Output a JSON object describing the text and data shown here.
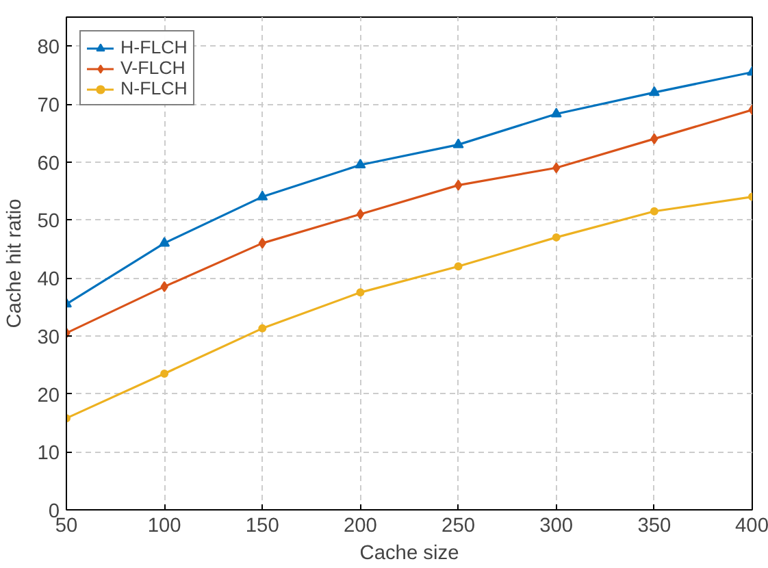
{
  "chart_data": {
    "type": "line",
    "xlabel": "Cache size",
    "ylabel": "Cache hit ratio",
    "x": [
      50,
      100,
      150,
      200,
      250,
      300,
      350,
      400
    ],
    "xlim": [
      50,
      400
    ],
    "xticks": [
      50,
      100,
      150,
      200,
      250,
      300,
      350,
      400
    ],
    "ylim": [
      0,
      85
    ],
    "yticks": [
      0,
      10,
      20,
      30,
      40,
      50,
      60,
      70,
      80
    ],
    "grid": true,
    "legend": "top left",
    "line_style": "solid",
    "series": [
      {
        "name": "H-FLCH",
        "color": "#0072bd",
        "marker": "triangle",
        "values": [
          35.5,
          46,
          54,
          59.5,
          63,
          68.3,
          72,
          75.5
        ]
      },
      {
        "name": "V-FLCH",
        "color": "#d95319",
        "marker": "diamond",
        "values": [
          30.5,
          38.5,
          46,
          51,
          56,
          59,
          64,
          69
        ]
      },
      {
        "name": "N-FLCH",
        "color": "#edb120",
        "marker": "circle",
        "values": [
          15.8,
          23.5,
          31.3,
          37.5,
          42,
          47,
          51.5,
          54
        ]
      }
    ]
  }
}
